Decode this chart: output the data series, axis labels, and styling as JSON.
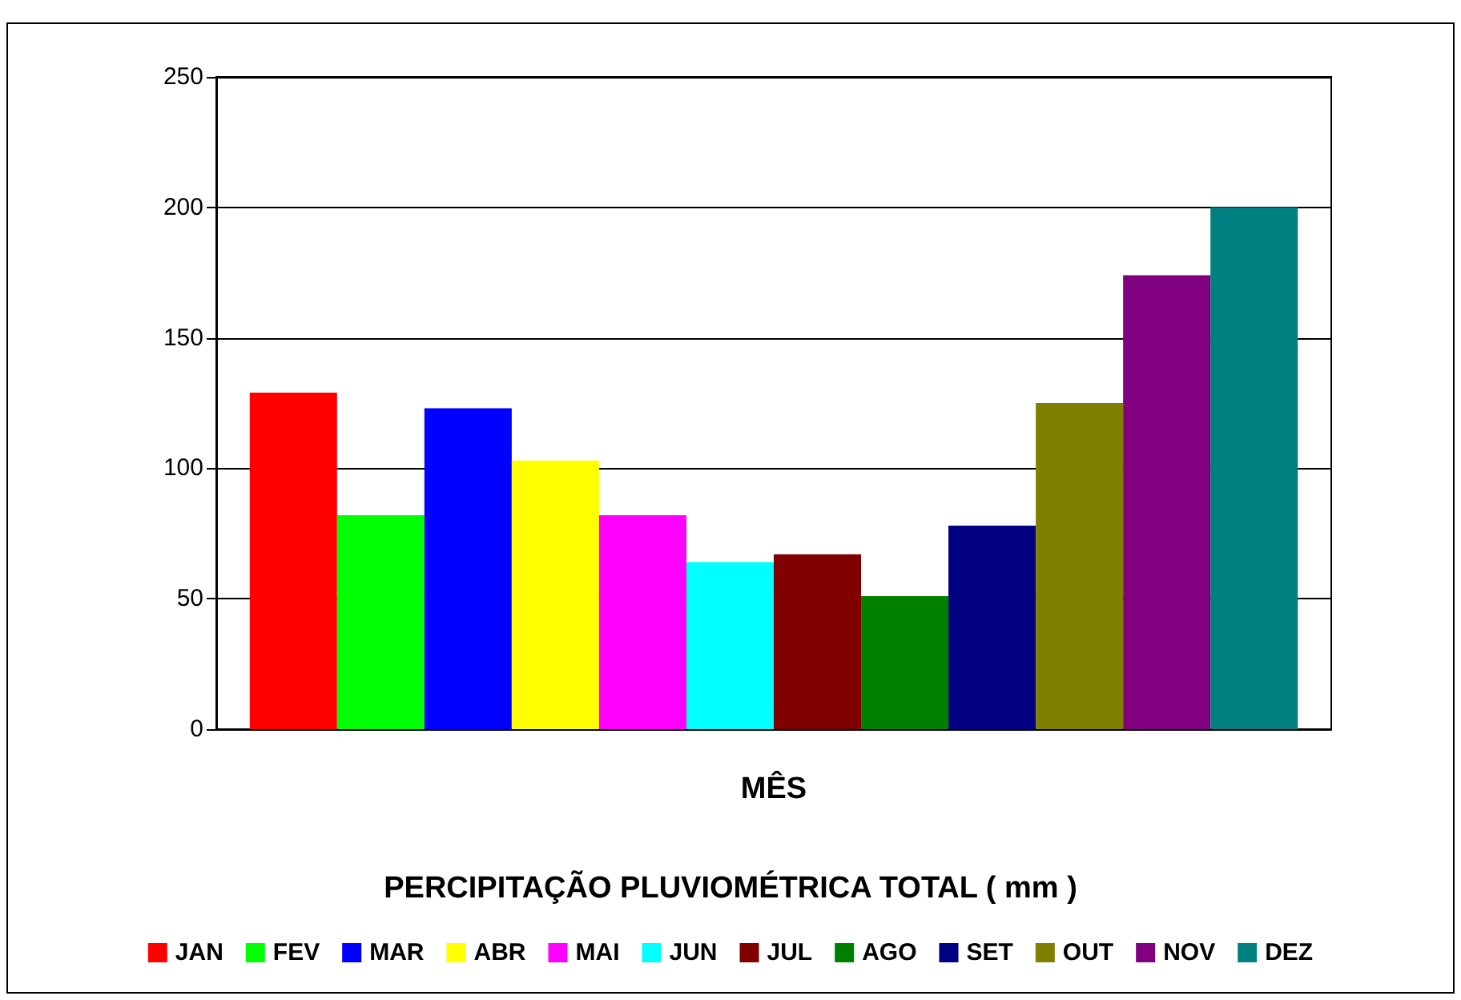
{
  "chart_data": {
    "type": "bar",
    "title": "PERCIPITAÇÃO PLUVIOMÉTRICA TOTAL ( mm )",
    "xlabel": "MÊS",
    "categories": [
      null
    ],
    "series": [
      {
        "name": "JAN",
        "color": "#ff0000",
        "values": [
          129
        ]
      },
      {
        "name": "FEV",
        "color": "#00ff00",
        "values": [
          82
        ]
      },
      {
        "name": "MAR",
        "color": "#0000ff",
        "values": [
          123
        ]
      },
      {
        "name": "ABR",
        "color": "#ffff00",
        "values": [
          103
        ]
      },
      {
        "name": "MAI",
        "color": "#ff00ff",
        "values": [
          82
        ]
      },
      {
        "name": "JUN",
        "color": "#00ffff",
        "values": [
          64
        ]
      },
      {
        "name": "JUL",
        "color": "#800000",
        "values": [
          67
        ]
      },
      {
        "name": "AGO",
        "color": "#008000",
        "values": [
          51
        ]
      },
      {
        "name": "SET",
        "color": "#000080",
        "values": [
          78
        ]
      },
      {
        "name": "OUT",
        "color": "#808000",
        "values": [
          125
        ]
      },
      {
        "name": "NOV",
        "color": "#800080",
        "values": [
          174
        ]
      },
      {
        "name": "DEZ",
        "color": "#008080",
        "values": [
          200
        ]
      }
    ],
    "ylim": [
      0,
      250
    ],
    "yticks": [
      0,
      50,
      100,
      150,
      200,
      250
    ],
    "grid": "y",
    "legend": "bottom"
  }
}
